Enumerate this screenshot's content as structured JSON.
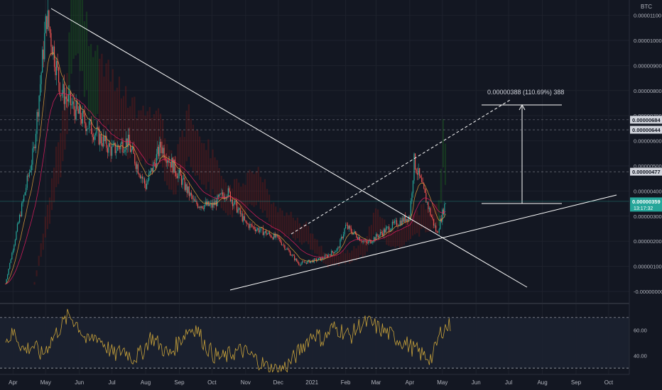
{
  "chart_data": [
    {
      "type": "candlestick",
      "title": "",
      "currency_label": "BTC",
      "x_ticks": [
        "Apr",
        "May",
        "Jun",
        "Jul",
        "Aug",
        "Sep",
        "Oct",
        "Nov",
        "Dec",
        "2021",
        "Feb",
        "Mar",
        "Apr",
        "May",
        "Jun",
        "Jul",
        "Aug",
        "Sep",
        "Oct"
      ],
      "y_ticks": [
        "0.00001100",
        "0.00001000",
        "0.00000900",
        "0.00000800",
        "0.00000700",
        "0.00000600",
        "0.00000500",
        "0.00000400",
        "0.00000300",
        "0.00000200",
        "0.00000100",
        "-0.00000000"
      ],
      "ylim": [
        -2e-07,
        1.15e-05
      ],
      "price_labels": [
        {
          "text": "0.00000684",
          "value": 6.84e-06
        },
        {
          "text": "0.00000644",
          "value": 6.44e-06
        },
        {
          "text": "0.00000477",
          "value": 4.77e-06
        },
        {
          "text": "0.00000359",
          "current": "13:17:32",
          "value": 3.59e-06
        }
      ],
      "measure_label": "0.00000388 (110.69%) 388",
      "key_points": [
        {
          "date": "2020-03-25",
          "close": 3e-07
        },
        {
          "date": "2020-04-20",
          "close": 5.6e-06
        },
        {
          "date": "2020-05-02",
          "close": 1.1e-05
        },
        {
          "date": "2020-05-15",
          "close": 8e-06
        },
        {
          "date": "2020-06-01",
          "close": 7e-06
        },
        {
          "date": "2020-07-01",
          "close": 5.6e-06
        },
        {
          "date": "2020-07-15",
          "close": 6e-06
        },
        {
          "date": "2020-08-01",
          "close": 4.2e-06
        },
        {
          "date": "2020-08-15",
          "close": 5.8e-06
        },
        {
          "date": "2020-09-01",
          "close": 4.6e-06
        },
        {
          "date": "2020-09-15",
          "close": 3.5e-06
        },
        {
          "date": "2020-10-01",
          "close": 3.4e-06
        },
        {
          "date": "2020-10-15",
          "close": 4e-06
        },
        {
          "date": "2020-11-01",
          "close": 2.7e-06
        },
        {
          "date": "2020-12-01",
          "close": 2.1e-06
        },
        {
          "date": "2020-12-20",
          "close": 1.1e-06
        },
        {
          "date": "2021-01-10",
          "close": 1.3e-06
        },
        {
          "date": "2021-01-25",
          "close": 1.7e-06
        },
        {
          "date": "2021-02-01",
          "close": 2.6e-06
        },
        {
          "date": "2021-02-20",
          "close": 1.9e-06
        },
        {
          "date": "2021-03-15",
          "close": 2.6e-06
        },
        {
          "date": "2021-04-01",
          "close": 3e-06
        },
        {
          "date": "2021-04-05",
          "close": 5.2e-06
        },
        {
          "date": "2021-04-20",
          "close": 3.1e-06
        },
        {
          "date": "2021-04-26",
          "close": 2.3e-06
        },
        {
          "date": "2021-05-04",
          "close": 3.59e-06
        }
      ]
    },
    {
      "type": "line",
      "name_printed": "",
      "y_ticks": [
        "60.00",
        "40.00"
      ],
      "ylim": [
        25,
        80
      ],
      "bands": [
        70,
        30
      ],
      "values": [
        52,
        58,
        44,
        48,
        40,
        52,
        62,
        72,
        64,
        50,
        56,
        48,
        40,
        45,
        38,
        42,
        55,
        48,
        40,
        50,
        60,
        62,
        48,
        40,
        38,
        42,
        44,
        40,
        35,
        30,
        28,
        32,
        40,
        50,
        58,
        52,
        62,
        60,
        55,
        64,
        66,
        62,
        58,
        54,
        50,
        45,
        40,
        38,
        60,
        64
      ]
    }
  ],
  "colors": {
    "background": "#131722",
    "up": "#26a69a",
    "down": "#ef5350",
    "line": "#ffffff",
    "ema_fast": "#e6a23c",
    "ema_slow": "#e91e63",
    "rsi": "#c8a23a"
  }
}
